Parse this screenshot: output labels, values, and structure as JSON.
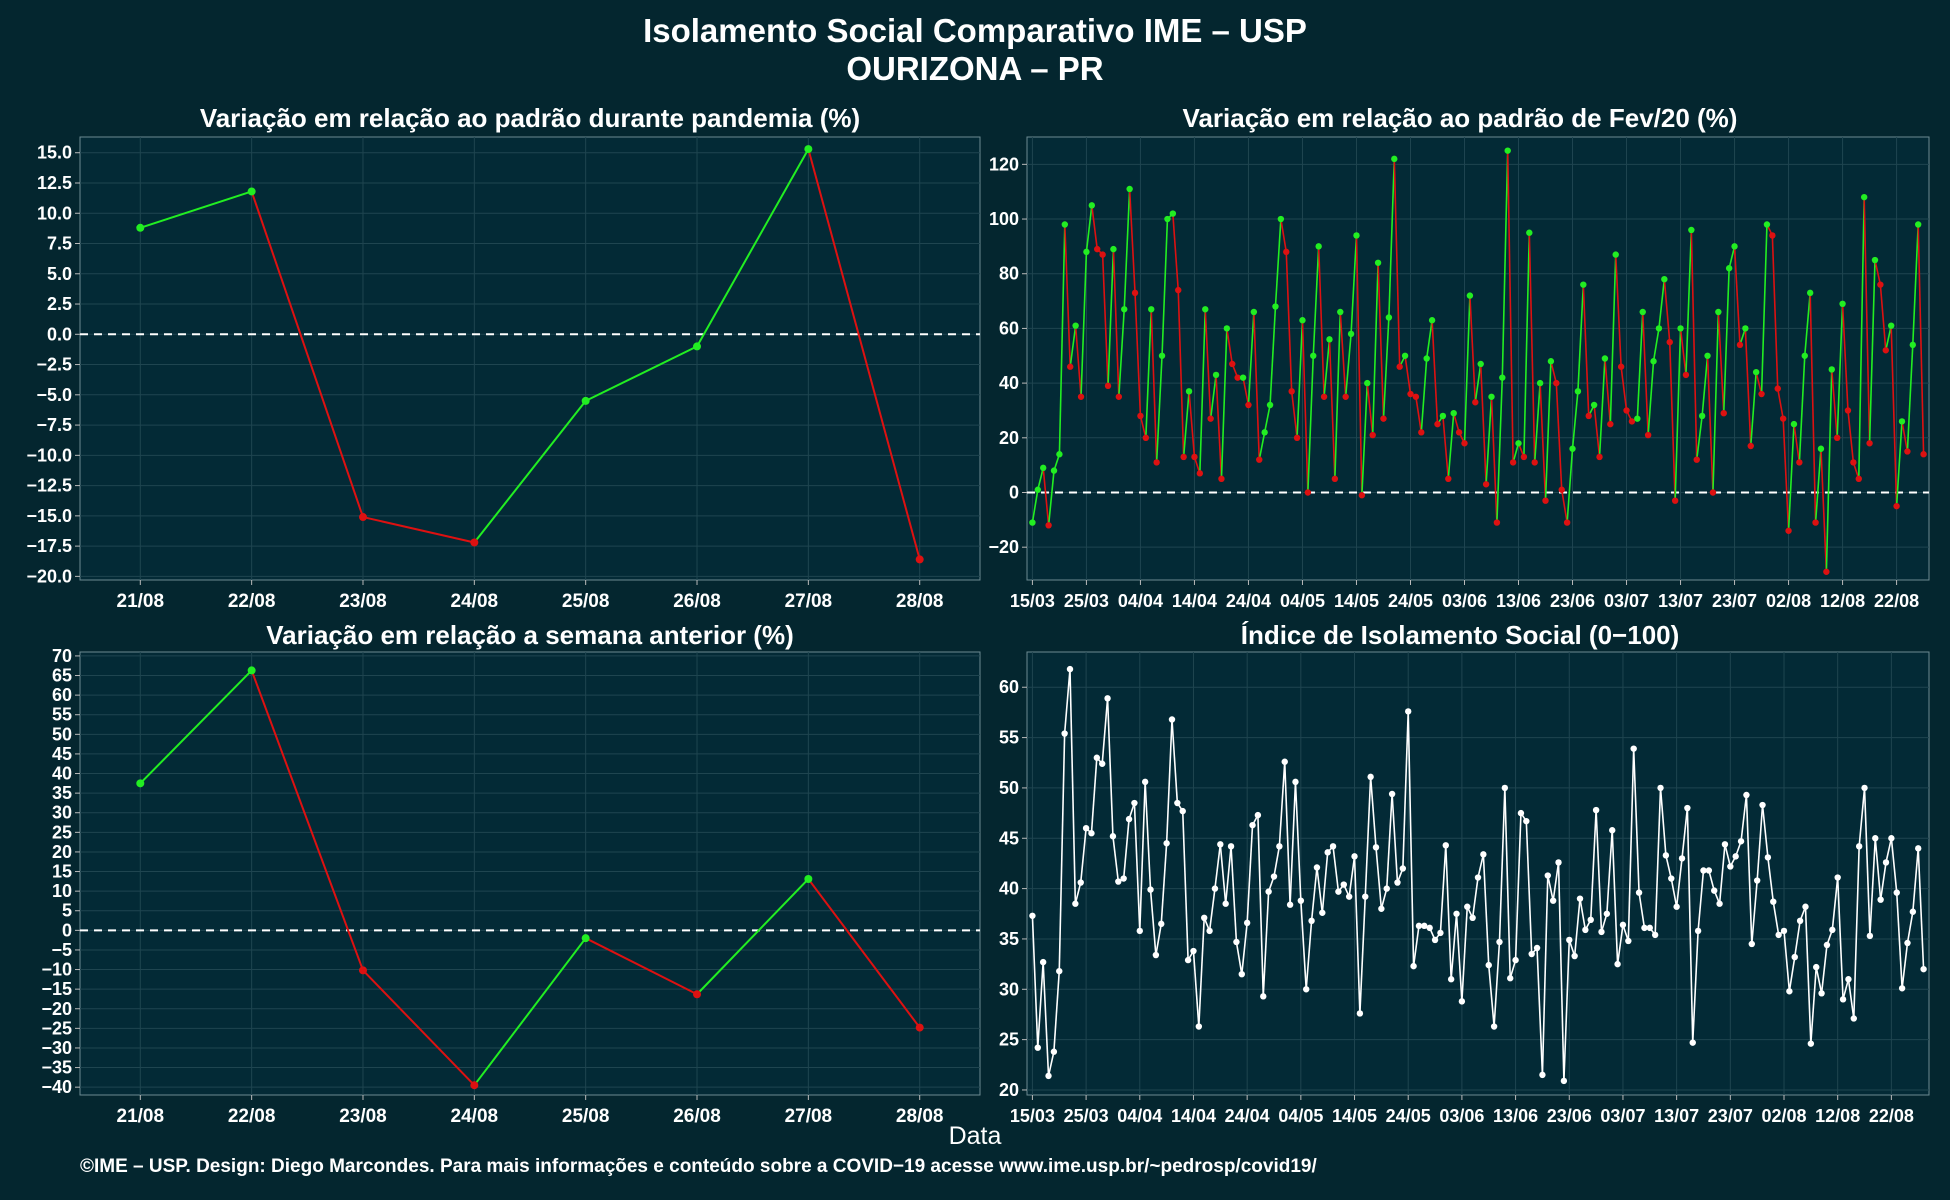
{
  "page": {
    "title_line1": "Isolamento Social Comparativo IME – USP",
    "title_line2": "OURIZONA – PR",
    "x_axis_title": "Data",
    "footer": "©IME – USP. Design: Diego Marcondes. Para mais informações e conteúdo sobre a COVID−19 acesse www.ime.usp.br/~pedrosp/covid19/"
  },
  "colors": {
    "background": "#04262f",
    "panel": "#032a36",
    "grid": "#1f4550",
    "up": "#22ee22",
    "down": "#dd1111",
    "index": "#ffffff",
    "zero_line": "#ffffff"
  },
  "chart_data": [
    {
      "type": "line",
      "title": "Variação em relação ao padrão durante pandemia (%)",
      "categories": [
        "21/08",
        "22/08",
        "23/08",
        "24/08",
        "25/08",
        "26/08",
        "27/08",
        "28/08"
      ],
      "values": [
        8.8,
        11.8,
        -15.1,
        -17.2,
        -5.5,
        -1.0,
        15.3,
        -18.6
      ],
      "yticks": [
        15.0,
        12.5,
        10.0,
        7.5,
        5.0,
        2.5,
        0.0,
        -2.5,
        -5.0,
        -7.5,
        -10.0,
        -12.5,
        -15.0,
        -17.5,
        -20.0
      ],
      "ylim": [
        -20.3,
        16.3
      ],
      "reference_line": 0,
      "grid": true,
      "color_rule": "green when segment rises, red when it falls"
    },
    {
      "type": "line",
      "title": "Variação em relação ao padrão de Fev/20 (%)",
      "start_date": "15/03",
      "xtick_labels": [
        "15/03",
        "25/03",
        "04/04",
        "14/04",
        "24/04",
        "04/05",
        "14/05",
        "24/05",
        "03/06",
        "13/06",
        "23/06",
        "03/07",
        "13/07",
        "23/07",
        "02/08",
        "12/08",
        "22/08"
      ],
      "values": [
        -11,
        1,
        9,
        -12,
        8,
        14,
        98,
        46,
        61,
        35,
        88,
        105,
        89,
        87,
        39,
        89,
        35,
        67,
        111,
        73,
        28,
        20,
        67,
        11,
        50,
        100,
        102,
        74,
        13,
        37,
        13,
        7,
        67,
        27,
        43,
        5,
        60,
        47,
        42,
        42,
        32,
        66,
        12,
        22,
        32,
        68,
        100,
        88,
        37,
        20,
        63,
        0,
        50,
        90,
        35,
        56,
        5,
        66,
        35,
        58,
        94,
        -1,
        40,
        21,
        84,
        27,
        64,
        122,
        46,
        50,
        36,
        35,
        22,
        49,
        63,
        25,
        28,
        5,
        29,
        22,
        18,
        72,
        33,
        47,
        3,
        35,
        -11,
        42,
        125,
        11,
        18,
        13,
        95,
        11,
        40,
        -3,
        48,
        40,
        1,
        -11,
        16,
        37,
        76,
        28,
        32,
        13,
        49,
        25,
        87,
        46,
        30,
        26,
        27,
        66,
        21,
        48,
        60,
        78,
        55,
        -3,
        60,
        43,
        96,
        12,
        28,
        50,
        0,
        66,
        29,
        82,
        90,
        54,
        60,
        17,
        44,
        36,
        98,
        94,
        38,
        27,
        -14,
        25,
        11,
        50,
        73,
        -11,
        16,
        -29,
        45,
        20,
        69,
        30,
        11,
        5,
        108,
        18,
        85,
        76,
        52,
        61,
        -5,
        26,
        15,
        54,
        98,
        14
      ],
      "yticks": [
        120,
        100,
        80,
        60,
        40,
        20,
        0,
        -20
      ],
      "ylim": [
        -32,
        130
      ],
      "reference_line": 0,
      "grid": true,
      "color_rule": "green when segment rises, red when it falls"
    },
    {
      "type": "line",
      "title": "Variação em relação a semana anterior (%)",
      "categories": [
        "21/08",
        "22/08",
        "23/08",
        "24/08",
        "25/08",
        "26/08",
        "27/08",
        "28/08"
      ],
      "values": [
        37.5,
        66.3,
        -10.2,
        -39.5,
        -2.0,
        -16.3,
        13.1,
        -24.8
      ],
      "yticks": [
        70,
        65,
        60,
        55,
        50,
        45,
        40,
        35,
        30,
        25,
        20,
        15,
        10,
        5,
        0,
        -5,
        -10,
        -15,
        -20,
        -25,
        -30,
        -35,
        -40
      ],
      "ylim": [
        -42,
        71
      ],
      "reference_line": 0,
      "grid": true,
      "color_rule": "green when segment rises, red when it falls"
    },
    {
      "type": "line",
      "title": "Índice de Isolamento Social (0−100)",
      "start_date": "15/03",
      "xtick_labels": [
        "15/03",
        "25/03",
        "04/04",
        "14/04",
        "24/04",
        "04/05",
        "14/05",
        "24/05",
        "03/06",
        "13/06",
        "23/06",
        "03/07",
        "13/07",
        "23/07",
        "02/08",
        "12/08",
        "22/08"
      ],
      "values": [
        37.3,
        24.2,
        32.7,
        21.4,
        23.8,
        31.8,
        55.4,
        61.8,
        38.5,
        40.6,
        46.0,
        45.5,
        53.0,
        52.4,
        58.9,
        45.2,
        40.7,
        41.0,
        46.9,
        48.5,
        35.8,
        50.6,
        39.9,
        33.4,
        36.5,
        44.5,
        56.8,
        48.5,
        47.7,
        32.9,
        33.8,
        26.3,
        37.1,
        35.8,
        40.0,
        44.4,
        38.5,
        44.2,
        34.7,
        31.5,
        36.6,
        46.3,
        47.3,
        29.3,
        39.7,
        41.2,
        44.2,
        52.6,
        38.4,
        50.6,
        38.8,
        30.0,
        36.8,
        42.1,
        37.6,
        43.6,
        44.2,
        39.7,
        40.4,
        39.2,
        43.2,
        27.6,
        39.2,
        51.1,
        44.1,
        38.0,
        40.0,
        49.4,
        40.6,
        42.0,
        57.6,
        32.3,
        36.3,
        36.3,
        36.1,
        34.9,
        35.6,
        44.3,
        31.0,
        37.5,
        28.8,
        38.2,
        37.1,
        41.1,
        43.4,
        32.4,
        26.3,
        34.7,
        50.0,
        31.1,
        32.9,
        47.5,
        46.7,
        33.5,
        34.1,
        21.5,
        41.3,
        38.8,
        42.6,
        20.9,
        34.9,
        33.3,
        39.0,
        35.9,
        36.9,
        47.8,
        35.7,
        37.5,
        45.8,
        32.5,
        36.4,
        34.8,
        53.9,
        39.6,
        36.1,
        36.1,
        35.4,
        50.0,
        43.3,
        41.0,
        38.2,
        43.0,
        48.0,
        24.7,
        35.8,
        41.8,
        41.8,
        39.8,
        38.5,
        44.4,
        42.2,
        43.2,
        44.7,
        49.3,
        34.5,
        40.8,
        48.3,
        43.1,
        38.7,
        35.4,
        35.8,
        29.8,
        33.2,
        36.8,
        38.2,
        24.6,
        32.2,
        29.6,
        34.4,
        35.9,
        41.1,
        29.0,
        31.0,
        27.1,
        44.2,
        50.0,
        35.3,
        45.0,
        38.9,
        42.6,
        45.0,
        39.6,
        30.1,
        34.6,
        37.7,
        44.0,
        32.0
      ],
      "yticks": [
        60,
        55,
        50,
        45,
        40,
        35,
        30,
        25,
        20
      ],
      "ylim": [
        19.5,
        63.5
      ],
      "grid": true
    }
  ]
}
